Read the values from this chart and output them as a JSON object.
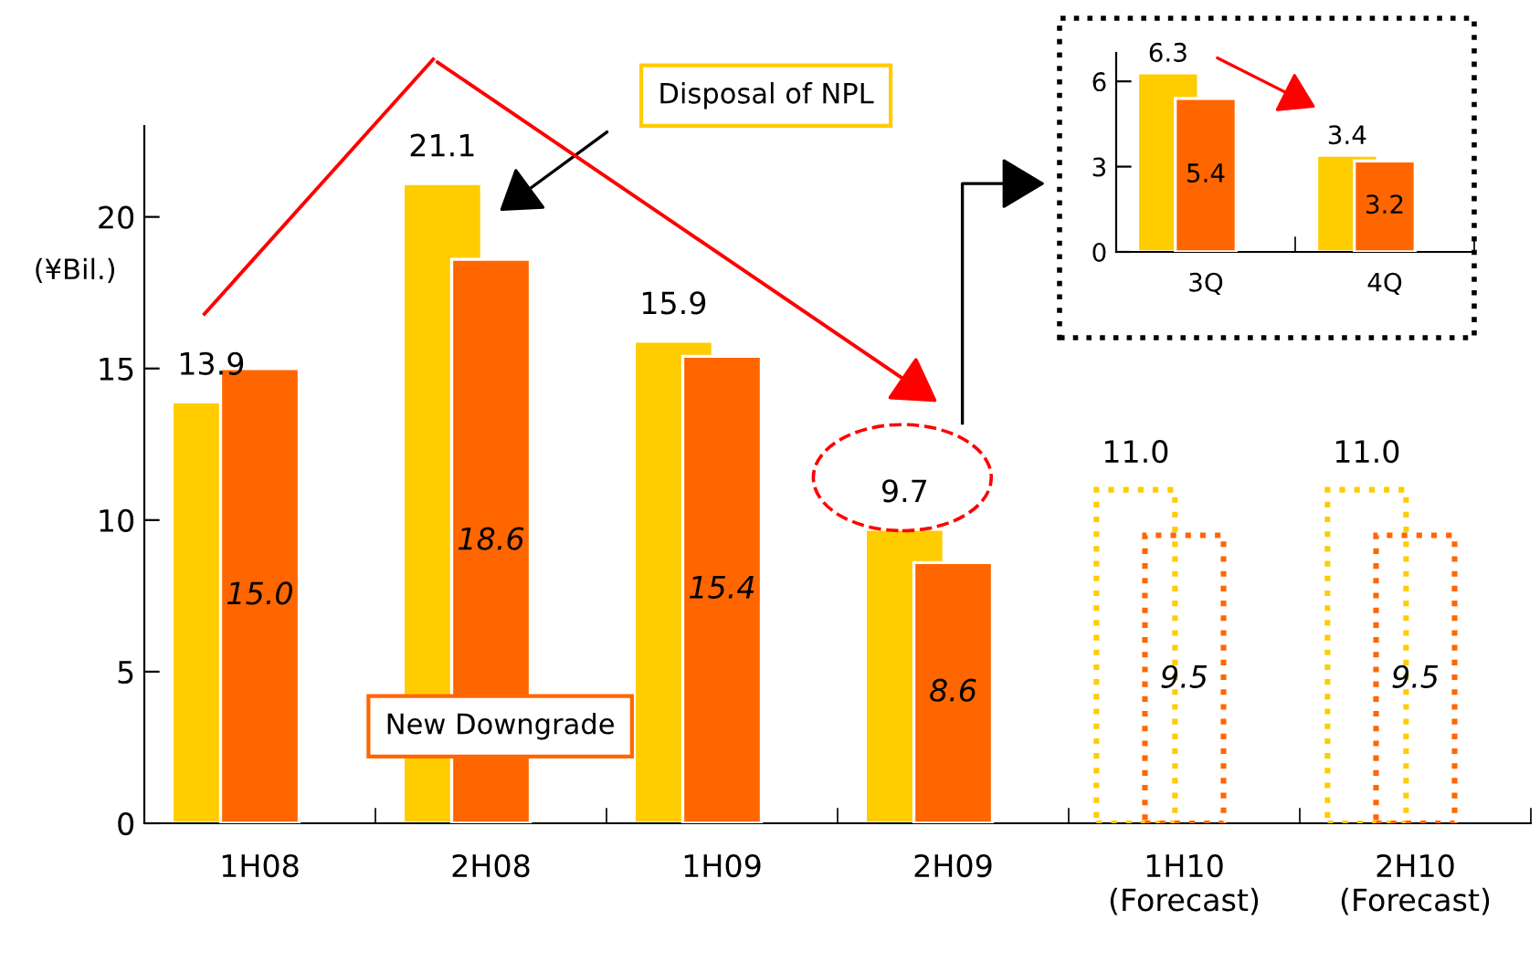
{
  "chart_data": [
    {
      "type": "bar",
      "categories": [
        "1H08",
        "2H08",
        "1H09",
        "2H09",
        "1H10\n(Forecast)",
        "2H10\n(Forecast)"
      ],
      "ylabel": "(¥Bil.)",
      "ylim": [
        0,
        23
      ],
      "yticks": [
        0,
        5,
        10,
        15,
        20
      ],
      "legend": false,
      "grid": false,
      "series": [
        {
          "name": "Disposal of NPL",
          "color": "#ffcc00",
          "values": [
            13.9,
            21.1,
            15.9,
            9.7,
            null,
            null
          ],
          "value_labels": [
            "13.9",
            "21.1",
            "15.9",
            "9.7",
            null,
            null
          ]
        },
        {
          "name": "New Downgrade",
          "color": "#ff6600",
          "values": [
            15.0,
            18.6,
            15.4,
            8.6,
            null,
            null
          ],
          "value_labels": [
            "15.0",
            "18.6",
            "15.4",
            "8.6",
            null,
            null
          ]
        },
        {
          "color": "#ffcc00",
          "line_style": "dotted",
          "values": [
            null,
            null,
            null,
            null,
            11.0,
            11.0
          ],
          "value_labels": [
            null,
            null,
            null,
            null,
            "11.0",
            "11.0"
          ]
        },
        {
          "color": "#ff6600",
          "line_style": "dotted",
          "values": [
            null,
            null,
            null,
            null,
            9.5,
            9.5
          ],
          "value_labels": [
            null,
            null,
            null,
            null,
            "9.5",
            "9.5"
          ]
        }
      ]
    },
    {
      "type": "bar",
      "categories": [
        "3Q",
        "4Q"
      ],
      "ylim": [
        0,
        7
      ],
      "yticks": [
        0,
        3,
        6
      ],
      "data_labels": true,
      "legend": false,
      "grid": false,
      "series": [
        {
          "color": "#ffcc00",
          "values": [
            6.3,
            3.4
          ]
        },
        {
          "color": "#ff6600",
          "values": [
            5.4,
            3.2
          ]
        }
      ]
    }
  ]
}
